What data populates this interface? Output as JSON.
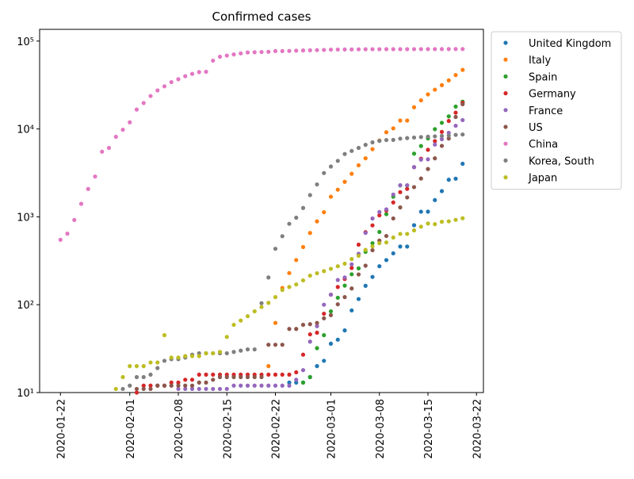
{
  "chart_data": {
    "type": "scatter",
    "title": "Confirmed cases",
    "log_y": true,
    "legend": "outside upper right",
    "x": [
      "2020-01-22",
      "2020-01-23",
      "2020-01-24",
      "2020-01-25",
      "2020-01-26",
      "2020-01-27",
      "2020-01-28",
      "2020-01-29",
      "2020-01-30",
      "2020-01-31",
      "2020-02-01",
      "2020-02-02",
      "2020-02-03",
      "2020-02-04",
      "2020-02-05",
      "2020-02-06",
      "2020-02-07",
      "2020-02-08",
      "2020-02-09",
      "2020-02-10",
      "2020-02-11",
      "2020-02-12",
      "2020-02-13",
      "2020-02-14",
      "2020-02-15",
      "2020-02-16",
      "2020-02-17",
      "2020-02-18",
      "2020-02-19",
      "2020-02-20",
      "2020-02-21",
      "2020-02-22",
      "2020-02-23",
      "2020-02-24",
      "2020-02-25",
      "2020-02-26",
      "2020-02-27",
      "2020-02-28",
      "2020-02-29",
      "2020-03-01",
      "2020-03-02",
      "2020-03-03",
      "2020-03-04",
      "2020-03-05",
      "2020-03-06",
      "2020-03-07",
      "2020-03-08",
      "2020-03-09",
      "2020-03-10",
      "2020-03-11",
      "2020-03-12",
      "2020-03-13",
      "2020-03-14",
      "2020-03-15",
      "2020-03-16",
      "2020-03-17",
      "2020-03-18",
      "2020-03-19",
      "2020-03-20"
    ],
    "xlim": [
      "2020-01-19",
      "2020-03-23"
    ],
    "xticks": [
      "2020-01-22",
      "2020-02-01",
      "2020-02-08",
      "2020-02-15",
      "2020-02-22",
      "2020-03-01",
      "2020-03-08",
      "2020-03-15",
      "2020-03-22"
    ],
    "ylim": [
      10,
      136000
    ],
    "yticks": [
      {
        "value": 10,
        "label": "10¹"
      },
      {
        "value": 100,
        "label": "10²"
      },
      {
        "value": 1000,
        "label": "10³"
      },
      {
        "value": 10000,
        "label": "10⁴"
      },
      {
        "value": 100000,
        "label": "10⁵"
      }
    ],
    "series": [
      {
        "name": "United Kingdom",
        "color": "#1f77b4",
        "values": [
          null,
          null,
          null,
          null,
          null,
          null,
          null,
          null,
          null,
          null,
          null,
          null,
          null,
          null,
          null,
          null,
          null,
          null,
          null,
          null,
          null,
          null,
          null,
          null,
          null,
          null,
          null,
          null,
          null,
          null,
          null,
          null,
          null,
          13,
          13,
          13,
          15,
          20,
          23,
          36,
          40,
          51,
          86,
          116,
          164,
          207,
          274,
          322,
          384,
          459,
          459,
          802,
          1144,
          1145,
          1551,
          1960,
          2642,
          2716,
          4014
        ]
      },
      {
        "name": "Italy",
        "color": "#ff7f0e",
        "values": [
          null,
          null,
          null,
          null,
          null,
          null,
          null,
          null,
          null,
          null,
          null,
          null,
          null,
          null,
          null,
          null,
          null,
          null,
          null,
          null,
          null,
          null,
          null,
          null,
          null,
          null,
          null,
          null,
          null,
          null,
          20,
          62,
          155,
          229,
          322,
          453,
          655,
          888,
          1128,
          1694,
          2036,
          2502,
          3089,
          3858,
          4636,
          5883,
          7375,
          9172,
          10149,
          12462,
          12462,
          17660,
          21157,
          24747,
          27980,
          31506,
          35713,
          41035,
          47021
        ]
      },
      {
        "name": "Spain",
        "color": "#2ca02c",
        "values": [
          null,
          null,
          null,
          null,
          null,
          null,
          null,
          null,
          null,
          null,
          null,
          null,
          null,
          null,
          null,
          null,
          null,
          null,
          null,
          null,
          null,
          null,
          null,
          null,
          null,
          null,
          null,
          null,
          null,
          null,
          null,
          null,
          null,
          null,
          null,
          13,
          15,
          32,
          45,
          84,
          120,
          165,
          222,
          259,
          400,
          500,
          673,
          1073,
          1695,
          2277,
          2277,
          5232,
          6391,
          7798,
          9942,
          11748,
          13910,
          17963,
          20410
        ]
      },
      {
        "name": "Germany",
        "color": "#d62728",
        "values": [
          null,
          null,
          null,
          null,
          null,
          null,
          null,
          null,
          null,
          null,
          null,
          10,
          12,
          12,
          12,
          12,
          13,
          13,
          14,
          14,
          16,
          16,
          16,
          16,
          16,
          16,
          16,
          16,
          16,
          16,
          16,
          16,
          16,
          16,
          17,
          27,
          46,
          48,
          79,
          130,
          159,
          196,
          262,
          482,
          670,
          799,
          1040,
          1176,
          1457,
          1908,
          2078,
          3675,
          4585,
          5795,
          7272,
          9257,
          12327,
          15320,
          19848
        ]
      },
      {
        "name": "France",
        "color": "#9467bd",
        "values": [
          null,
          null,
          null,
          null,
          null,
          null,
          null,
          null,
          null,
          null,
          null,
          null,
          null,
          null,
          null,
          null,
          null,
          11,
          11,
          11,
          11,
          11,
          11,
          11,
          11,
          12,
          12,
          12,
          12,
          12,
          12,
          12,
          12,
          12,
          14,
          18,
          38,
          57,
          100,
          130,
          191,
          204,
          288,
          380,
          656,
          957,
          1134,
          1217,
          1792,
          2289,
          2289,
          3672,
          4480,
          4513,
          6650,
          7652,
          9043,
          10871,
          12612
        ]
      },
      {
        "name": "US",
        "color": "#8c564b",
        "values": [
          null,
          null,
          null,
          null,
          null,
          null,
          null,
          null,
          null,
          null,
          null,
          11,
          11,
          11,
          12,
          12,
          12,
          12,
          12,
          12,
          13,
          13,
          14,
          15,
          15,
          15,
          15,
          15,
          15,
          15,
          35,
          35,
          35,
          53,
          53,
          59,
          60,
          62,
          70,
          76,
          101,
          122,
          153,
          221,
          278,
          417,
          537,
          605,
          959,
          1281,
          1663,
          2179,
          2727,
          3499,
          4632,
          6421,
          7786,
          13680,
          19101
        ]
      },
      {
        "name": "China",
        "color": "#e377c2",
        "values": [
          548,
          643,
          920,
          1406,
          2075,
          2877,
          5509,
          6087,
          8141,
          9802,
          11891,
          16630,
          19716,
          23707,
          27440,
          30587,
          34110,
          36814,
          39829,
          42354,
          44386,
          44759,
          59895,
          66358,
          68413,
          70513,
          72434,
          74211,
          74619,
          75077,
          75550,
          77001,
          77022,
          77241,
          77754,
          78166,
          78600,
          78928,
          79356,
          79932,
          80136,
          80261,
          80386,
          80537,
          80690,
          80770,
          80823,
          80860,
          80887,
          80921,
          80932,
          80945,
          80977,
          81003,
          81033,
          81058,
          81102,
          81156,
          81250
        ]
      },
      {
        "name": "Korea, South",
        "color": "#7f7f7f",
        "values": [
          null,
          null,
          null,
          null,
          null,
          null,
          null,
          null,
          null,
          11,
          12,
          15,
          15,
          16,
          19,
          23,
          24,
          24,
          25,
          27,
          28,
          28,
          28,
          28,
          28,
          29,
          30,
          31,
          31,
          104,
          204,
          433,
          602,
          833,
          977,
          1261,
          1766,
          2337,
          3150,
          3736,
          4335,
          5186,
          5621,
          6088,
          6593,
          7041,
          7314,
          7478,
          7513,
          7755,
          7869,
          7979,
          8086,
          8162,
          8236,
          8320,
          8413,
          8565,
          8652
        ]
      },
      {
        "name": "Japan",
        "color": "#bcbd22",
        "values": [
          null,
          null,
          null,
          null,
          null,
          null,
          null,
          null,
          11,
          15,
          20,
          20,
          20,
          22,
          22,
          45,
          25,
          25,
          26,
          26,
          26,
          28,
          28,
          29,
          43,
          59,
          66,
          74,
          84,
          94,
          105,
          122,
          147,
          159,
          170,
          189,
          214,
          228,
          241,
          256,
          274,
          293,
          331,
          360,
          420,
          461,
          502,
          511,
          581,
          639,
          639,
          701,
          773,
          839,
          825,
          878,
          889,
          924,
          963
        ]
      }
    ]
  }
}
